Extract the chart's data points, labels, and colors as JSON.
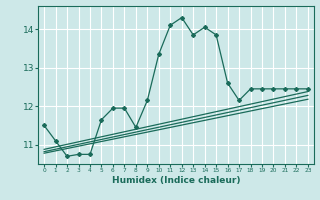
{
  "title": "",
  "xlabel": "Humidex (Indice chaleur)",
  "ylabel": "",
  "background_color": "#cde8e8",
  "grid_color": "#ffffff",
  "line_color": "#1a6b5a",
  "xlim": [
    -0.5,
    23.5
  ],
  "ylim": [
    10.5,
    14.6
  ],
  "yticks": [
    11,
    12,
    13,
    14
  ],
  "xticks": [
    0,
    1,
    2,
    3,
    4,
    5,
    6,
    7,
    8,
    9,
    10,
    11,
    12,
    13,
    14,
    15,
    16,
    17,
    18,
    19,
    20,
    21,
    22,
    23
  ],
  "main_line_x": [
    0,
    1,
    2,
    3,
    4,
    5,
    6,
    7,
    8,
    9,
    10,
    11,
    12,
    13,
    14,
    15,
    16,
    17,
    18,
    19,
    20,
    21,
    22,
    23
  ],
  "main_line_y": [
    11.5,
    11.1,
    10.7,
    10.75,
    10.75,
    11.65,
    11.95,
    11.95,
    11.45,
    12.15,
    13.35,
    14.1,
    14.3,
    13.85,
    14.05,
    13.85,
    12.6,
    12.15,
    12.45,
    12.45,
    12.45,
    12.45,
    12.45,
    12.45
  ],
  "reg_line1_x": [
    0,
    23
  ],
  "reg_line1_y": [
    10.82,
    12.28
  ],
  "reg_line2_x": [
    0,
    23
  ],
  "reg_line2_y": [
    10.78,
    12.18
  ],
  "reg_line3_x": [
    0,
    23
  ],
  "reg_line3_y": [
    10.88,
    12.38
  ]
}
